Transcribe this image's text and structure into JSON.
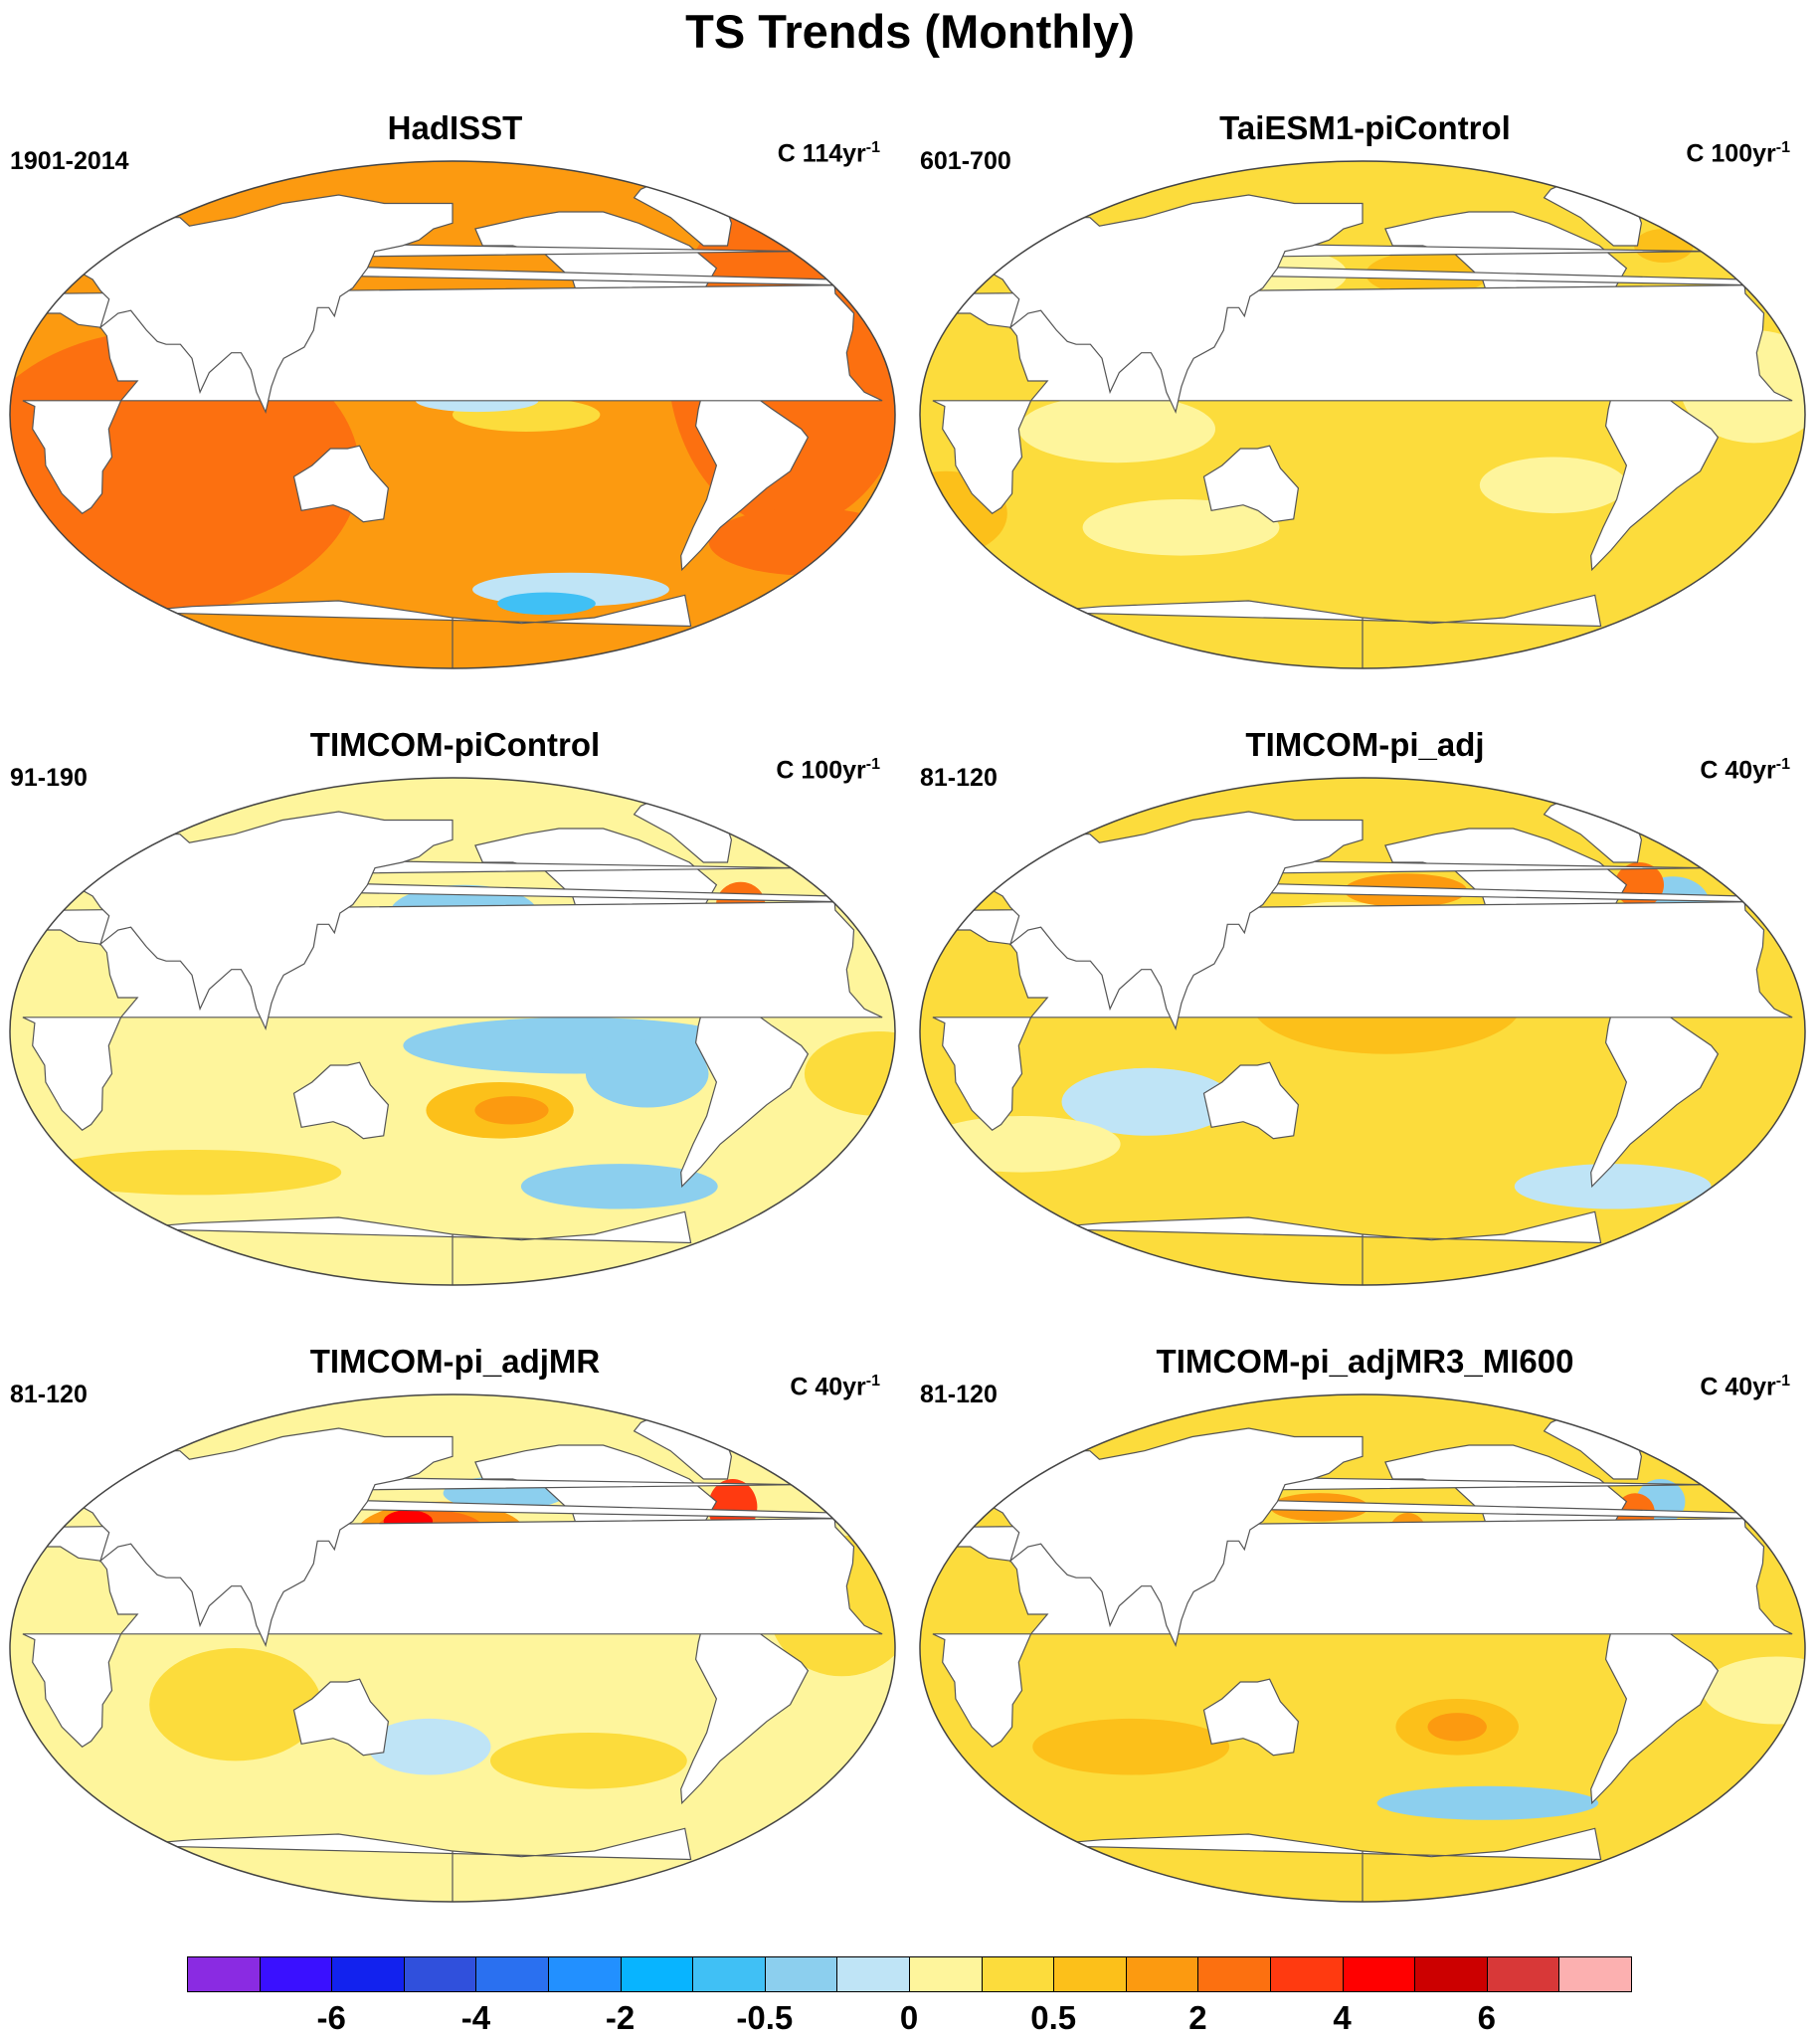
{
  "figure": {
    "title": "TS Trends (Monthly)"
  },
  "panels": [
    {
      "title": "HadISST",
      "period": "1901-2014",
      "units_text": "C 114yr",
      "units_exp": "-1",
      "background_level": 13,
      "features": [
        {
          "lon": -40,
          "lat": 20,
          "rx": 50,
          "ry": 60,
          "level": 14
        },
        {
          "lon": 60,
          "lat": -20,
          "rx": 80,
          "ry": 50,
          "level": 14
        },
        {
          "lon": -150,
          "lat": 0,
          "rx": 30,
          "ry": 6,
          "level": 11
        },
        {
          "lon": -170,
          "lat": 5,
          "rx": 25,
          "ry": 4,
          "level": 9
        },
        {
          "lon": -120,
          "lat": -62,
          "rx": 40,
          "ry": 6,
          "level": 9
        },
        {
          "lon": -130,
          "lat": -67,
          "rx": 20,
          "ry": 4,
          "level": 7
        },
        {
          "lon": -20,
          "lat": -45,
          "rx": 40,
          "ry": 12,
          "level": 14
        },
        {
          "lon": 130,
          "lat": 20,
          "rx": 18,
          "ry": 15,
          "level": 12
        },
        {
          "lon": -160,
          "lat": 20,
          "rx": 25,
          "ry": 12,
          "level": 12
        }
      ]
    },
    {
      "title": "TaiESM1-piControl",
      "period": "601-700",
      "units_text": "C 100yr",
      "units_exp": "-1",
      "background_level": 11,
      "features": [
        {
          "lon": 80,
          "lat": -5,
          "rx": 40,
          "ry": 12,
          "level": 10
        },
        {
          "lon": 100,
          "lat": -40,
          "rx": 40,
          "ry": 10,
          "level": 10
        },
        {
          "lon": -100,
          "lat": -25,
          "rx": 30,
          "ry": 10,
          "level": 10
        },
        {
          "lon": -20,
          "lat": 10,
          "rx": 30,
          "ry": 20,
          "level": 10
        },
        {
          "lon": 0,
          "lat": -35,
          "rx": 25,
          "ry": 15,
          "level": 12
        },
        {
          "lon": -150,
          "lat": 50,
          "rx": 25,
          "ry": 8,
          "level": 12
        },
        {
          "lon": -30,
          "lat": 60,
          "rx": 12,
          "ry": 6,
          "level": 12
        },
        {
          "lon": 150,
          "lat": 50,
          "rx": 20,
          "ry": 8,
          "level": 10
        }
      ]
    },
    {
      "title": "TIMCOM-piControl",
      "period": "91-190",
      "units_text": "C 100yr",
      "units_exp": "-1",
      "background_level": 10,
      "features": [
        {
          "lon": -130,
          "lat": -5,
          "rx": 70,
          "ry": 10,
          "level": 8
        },
        {
          "lon": -100,
          "lat": -15,
          "rx": 25,
          "ry": 12,
          "level": 8
        },
        {
          "lon": -160,
          "lat": -28,
          "rx": 30,
          "ry": 10,
          "level": 12
        },
        {
          "lon": -155,
          "lat": -28,
          "rx": 15,
          "ry": 5,
          "level": 13
        },
        {
          "lon": -175,
          "lat": 42,
          "rx": 30,
          "ry": 10,
          "level": 8
        },
        {
          "lon": 170,
          "lat": 25,
          "rx": 20,
          "ry": 6,
          "level": 11
        },
        {
          "lon": -100,
          "lat": -55,
          "rx": 40,
          "ry": 8,
          "level": 8
        },
        {
          "lon": -50,
          "lat": 45,
          "rx": 10,
          "ry": 8,
          "level": 14
        },
        {
          "lon": 60,
          "lat": -50,
          "rx": 60,
          "ry": 8,
          "level": 11
        },
        {
          "lon": -5,
          "lat": -15,
          "rx": 30,
          "ry": 15,
          "level": 11
        }
      ]
    },
    {
      "title": "TIMCOM-pi_adj",
      "period": "81-120",
      "units_text": "C 40yr",
      "units_exp": "-1",
      "background_level": 11,
      "features": [
        {
          "lon": -170,
          "lat": 10,
          "rx": 55,
          "ry": 18,
          "level": 12
        },
        {
          "lon": 90,
          "lat": -25,
          "rx": 35,
          "ry": 12,
          "level": 9
        },
        {
          "lon": -40,
          "lat": 45,
          "rx": 15,
          "ry": 10,
          "level": 8
        },
        {
          "lon": -50,
          "lat": 52,
          "rx": 10,
          "ry": 8,
          "level": 14
        },
        {
          "lon": 170,
          "lat": 40,
          "rx": 25,
          "ry": 6,
          "level": 10
        },
        {
          "lon": -160,
          "lat": 50,
          "rx": 25,
          "ry": 6,
          "level": 13
        },
        {
          "lon": -60,
          "lat": -55,
          "rx": 40,
          "ry": 8,
          "level": 9
        },
        {
          "lon": 30,
          "lat": -40,
          "rx": 40,
          "ry": 10,
          "level": 10
        }
      ]
    },
    {
      "title": "TIMCOM-pi_adjMR",
      "period": "81-120",
      "units_text": "C 40yr",
      "units_exp": "-1",
      "background_level": 10,
      "features": [
        {
          "lon": 175,
          "lat": 40,
          "rx": 35,
          "ry": 12,
          "level": 13
        },
        {
          "lon": 170,
          "lat": 42,
          "rx": 22,
          "ry": 7,
          "level": 14
        },
        {
          "lon": 160,
          "lat": 45,
          "rx": 10,
          "ry": 4,
          "level": 16
        },
        {
          "lon": -155,
          "lat": 55,
          "rx": 25,
          "ry": 6,
          "level": 8
        },
        {
          "lon": -150,
          "lat": 30,
          "rx": 15,
          "ry": 8,
          "level": 8
        },
        {
          "lon": -50,
          "lat": 50,
          "rx": 10,
          "ry": 10,
          "level": 15
        },
        {
          "lon": -20,
          "lat": 15,
          "rx": 30,
          "ry": 25,
          "level": 11
        },
        {
          "lon": 90,
          "lat": -20,
          "rx": 35,
          "ry": 20,
          "level": 11
        },
        {
          "lon": -120,
          "lat": -40,
          "rx": 40,
          "ry": 10,
          "level": 11
        },
        {
          "lon": 170,
          "lat": -35,
          "rx": 25,
          "ry": 10,
          "level": 9
        }
      ]
    },
    {
      "title": "TIMCOM-pi_adjMR3_MI600",
      "period": "81-120",
      "units_text": "C 40yr",
      "units_exp": "-1",
      "background_level": 11,
      "features": [
        {
          "lon": -140,
          "lat": -28,
          "rx": 25,
          "ry": 10,
          "level": 12
        },
        {
          "lon": -140,
          "lat": -28,
          "rx": 12,
          "ry": 5,
          "level": 13
        },
        {
          "lon": -120,
          "lat": -55,
          "rx": 45,
          "ry": 6,
          "level": 8
        },
        {
          "lon": 160,
          "lat": 50,
          "rx": 20,
          "ry": 5,
          "level": 13
        },
        {
          "lon": -160,
          "lat": 40,
          "rx": 8,
          "ry": 8,
          "level": 13
        },
        {
          "lon": -40,
          "lat": 52,
          "rx": 10,
          "ry": 8,
          "level": 8
        },
        {
          "lon": -55,
          "lat": 48,
          "rx": 8,
          "ry": 7,
          "level": 14
        },
        {
          "lon": 160,
          "lat": 25,
          "rx": 30,
          "ry": 10,
          "level": 10
        },
        {
          "lon": 80,
          "lat": -35,
          "rx": 40,
          "ry": 10,
          "level": 12
        },
        {
          "lon": -10,
          "lat": -15,
          "rx": 30,
          "ry": 12,
          "level": 10
        }
      ]
    }
  ],
  "colorbar": {
    "colors": [
      "#8a2be2",
      "#3a10ff",
      "#1222ee",
      "#3050dc",
      "#2a70f0",
      "#2290ff",
      "#08b4ff",
      "#40c0f5",
      "#8ccfee",
      "#bfe4f6",
      "#fef59c",
      "#fcdc3c",
      "#fcc01a",
      "#fc9a10",
      "#fc7010",
      "#ff3a10",
      "#ff0000",
      "#cc0000",
      "#d83838",
      "#fcb0b0"
    ],
    "tick_labels": [
      "-6",
      "-4",
      "-2",
      "-0.5",
      "0",
      "0.5",
      "2",
      "4",
      "6"
    ],
    "tick_boundaries": [
      2,
      4,
      6,
      8,
      10,
      12,
      14,
      16,
      18
    ]
  }
}
